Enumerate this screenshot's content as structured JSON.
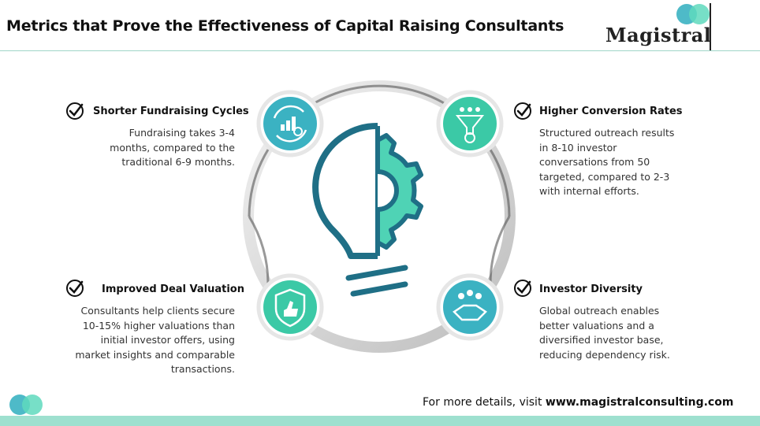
{
  "header": {
    "title": "Metrics that Prove the Effectiveness of Capital Raising Consultants",
    "logo_text": "Magistral"
  },
  "metrics": [
    {
      "heading": "Shorter Fundraising Cycles",
      "lines": [
        "Fundraising takes 3-4",
        "months, compared to the",
        "traditional 6-9 months."
      ],
      "icon": "cycle-growth-icon"
    },
    {
      "heading": "Higher Conversion Rates",
      "lines": [
        "Structured outreach results",
        "in 8-10 investor",
        "conversations from 50",
        "targeted, compared to 2-3",
        "with internal efforts."
      ],
      "icon": "funnel-icon"
    },
    {
      "heading": "Improved Deal Valuation",
      "lines": [
        "Consultants help clients secure",
        "10-15% higher valuations than",
        "initial investor offers, using",
        "market insights and comparable",
        "transactions."
      ],
      "icon": "shield-thumbs-up-icon"
    },
    {
      "heading": "Investor Diversity",
      "lines": [
        "Global outreach enables",
        "better valuations and a",
        "diversified investor base,",
        "reducing dependency risk."
      ],
      "icon": "handshake-icon"
    }
  ],
  "footer": {
    "prefix": "For more details, visit ",
    "url": "www.magistralconsulting.com"
  },
  "colors": {
    "teal_dark": "#1f6f86",
    "teal_light": "#4fd3b5",
    "teal_mid": "#3bb2c2",
    "header_rule": "#9fd6c8",
    "bottom_bar": "#9ee0cf"
  }
}
